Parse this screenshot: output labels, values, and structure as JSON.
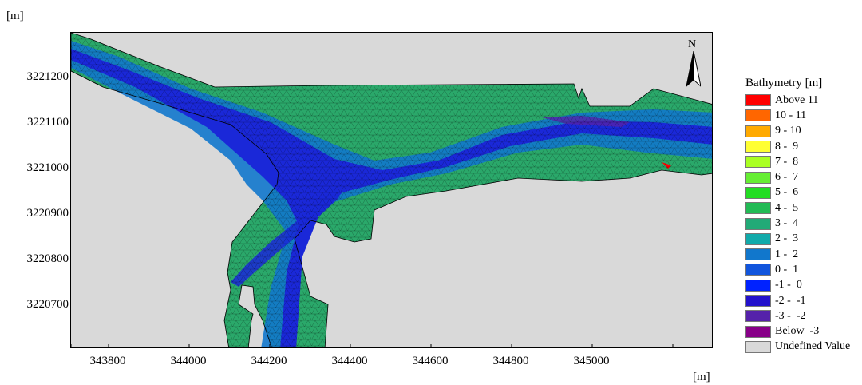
{
  "axes": {
    "y_unit": "[m]",
    "x_unit": "[m]",
    "y_ticks": [
      "3221200",
      "3221100",
      "3221000",
      "3220900",
      "3220800",
      "3220700"
    ],
    "x_ticks": [
      "343800",
      "344000",
      "344200",
      "344400",
      "344600",
      "344800",
      "345000"
    ]
  },
  "north_arrow": {
    "label": "N"
  },
  "legend": {
    "title": "Bathymetry [m]",
    "items": [
      {
        "label": "Above 11",
        "color": "#ff0000"
      },
      {
        "label": "10 - 11",
        "color": "#ff6600"
      },
      {
        "label": "9 - 10",
        "color": "#ffaa00"
      },
      {
        "label": "8 -  9",
        "color": "#ffff33"
      },
      {
        "label": "7 -  8",
        "color": "#aaff22"
      },
      {
        "label": "6 -  7",
        "color": "#66ee33"
      },
      {
        "label": "5 -  6",
        "color": "#22dd22"
      },
      {
        "label": "4 -  5",
        "color": "#22bb55"
      },
      {
        "label": "3 -  4",
        "color": "#22aa77"
      },
      {
        "label": "2 -  3",
        "color": "#11aaaa"
      },
      {
        "label": "1 -  2",
        "color": "#1177cc"
      },
      {
        "label": "0 -  1",
        "color": "#1155dd"
      },
      {
        "label": "-1 -  0",
        "color": "#0022ff"
      },
      {
        "label": "-2 -  -1",
        "color": "#2211cc"
      },
      {
        "label": "-3 -  -2",
        "color": "#5522aa"
      },
      {
        "label": "Below  -3",
        "color": "#880088"
      },
      {
        "label": "Undefined Value",
        "color": "#d9d9d9"
      }
    ]
  },
  "colors": {
    "undefined": "#d9d9d9",
    "shallow": "#2aa86a",
    "mid": "#1177cc",
    "deep": "#1a28d8"
  }
}
